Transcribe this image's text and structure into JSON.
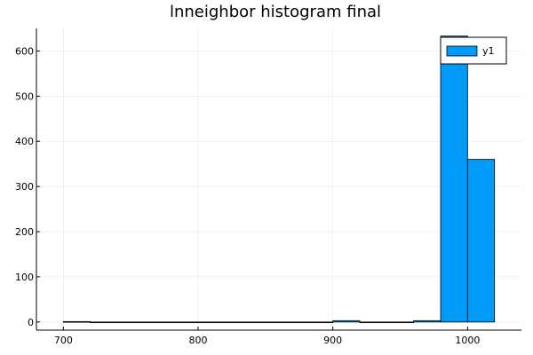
{
  "chart_data": {
    "type": "bar",
    "title": "lnneighbor histogram final",
    "xlabel": "",
    "ylabel": "",
    "xlim": [
      680,
      1040
    ],
    "ylim": [
      -18,
      650
    ],
    "x_ticks": [
      700,
      800,
      900,
      1000
    ],
    "y_ticks": [
      0,
      100,
      200,
      300,
      400,
      500,
      600
    ],
    "grid": true,
    "legend_position": "top-right",
    "series": [
      {
        "name": "y1",
        "color": "#009af9",
        "bins": [
          {
            "start": 700,
            "end": 720,
            "count": 1
          },
          {
            "start": 720,
            "end": 740,
            "count": 0
          },
          {
            "start": 740,
            "end": 760,
            "count": 0
          },
          {
            "start": 760,
            "end": 780,
            "count": 0
          },
          {
            "start": 780,
            "end": 800,
            "count": 0
          },
          {
            "start": 800,
            "end": 820,
            "count": 0
          },
          {
            "start": 820,
            "end": 840,
            "count": 0
          },
          {
            "start": 840,
            "end": 860,
            "count": 0
          },
          {
            "start": 860,
            "end": 880,
            "count": 0
          },
          {
            "start": 880,
            "end": 900,
            "count": 0
          },
          {
            "start": 900,
            "end": 920,
            "count": 3
          },
          {
            "start": 920,
            "end": 940,
            "count": 0
          },
          {
            "start": 940,
            "end": 960,
            "count": 0
          },
          {
            "start": 960,
            "end": 980,
            "count": 3
          },
          {
            "start": 980,
            "end": 1000,
            "count": 633
          },
          {
            "start": 1000,
            "end": 1020,
            "count": 360
          }
        ]
      }
    ]
  }
}
